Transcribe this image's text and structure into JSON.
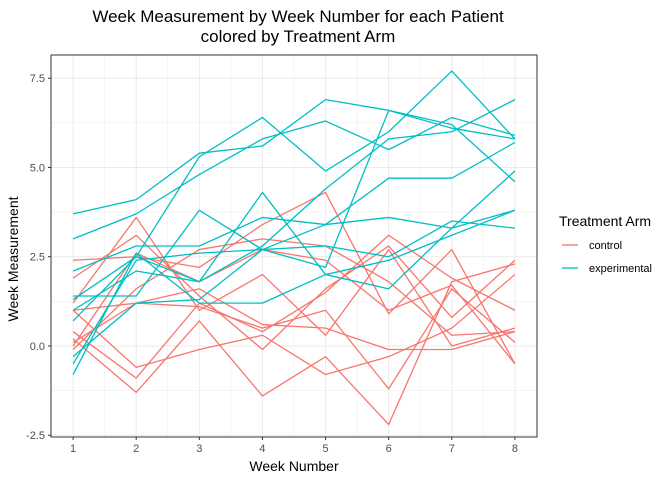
{
  "chart_data": {
    "type": "line",
    "title_line1": "Week Measurement by Week Number for each Patient",
    "title_line2": "colored by Treatment Arm",
    "xlabel": "Week Number",
    "ylabel": "Week Measurement",
    "xlim": [
      0.65,
      8.35
    ],
    "ylim": [
      -2.55,
      8.15
    ],
    "x_ticks": [
      1,
      2,
      3,
      4,
      5,
      6,
      7,
      8
    ],
    "y_ticks": [
      -2.5,
      0.0,
      2.5,
      5.0,
      7.5
    ],
    "y_tick_labels": [
      "-2.5",
      "0.0",
      "2.5",
      "5.0",
      "7.5"
    ],
    "grid": true,
    "legend": {
      "title": "Treatment Arm",
      "position": "right",
      "entries": [
        {
          "label": "control",
          "color": "#f8766d"
        },
        {
          "label": "experimental",
          "color": "#00bfc4"
        }
      ]
    },
    "x": [
      1,
      2,
      3,
      4,
      5,
      6,
      7,
      8
    ],
    "series": [
      {
        "group": "control",
        "values": [
          0.2,
          -1.3,
          0.7,
          -1.4,
          -0.3,
          -2.2,
          1.8,
          2.3
        ]
      },
      {
        "group": "control",
        "values": [
          1.2,
          3.6,
          1.0,
          2.0,
          0.3,
          2.7,
          0.0,
          0.5
        ]
      },
      {
        "group": "control",
        "values": [
          2.4,
          2.5,
          2.2,
          3.4,
          4.3,
          0.9,
          2.7,
          -0.5
        ]
      },
      {
        "group": "control",
        "values": [
          1.0,
          1.2,
          1.6,
          0.6,
          0.5,
          -0.1,
          -0.1,
          0.4
        ]
      },
      {
        "group": "control",
        "values": [
          -0.1,
          1.6,
          2.7,
          3.0,
          2.8,
          1.8,
          0.3,
          0.4
        ]
      },
      {
        "group": "control",
        "values": [
          1.9,
          3.1,
          1.4,
          -0.1,
          1.6,
          2.8,
          0.8,
          2.4
        ]
      },
      {
        "group": "control",
        "values": [
          0.4,
          -0.9,
          1.2,
          0.4,
          1.5,
          3.1,
          1.9,
          1.0
        ]
      },
      {
        "group": "control",
        "values": [
          0.1,
          1.2,
          1.1,
          0.5,
          1.0,
          -1.2,
          1.6,
          0.1
        ]
      },
      {
        "group": "control",
        "values": [
          1.0,
          -0.6,
          -0.1,
          0.3,
          -0.8,
          -0.3,
          0.5,
          2.0
        ]
      },
      {
        "group": "control",
        "values": [
          0.0,
          2.6,
          1.8,
          2.7,
          2.4,
          1.0,
          1.7,
          -0.5
        ]
      },
      {
        "group": "experimental",
        "values": [
          3.7,
          4.1,
          5.4,
          5.6,
          6.9,
          6.6,
          6.1,
          5.8
        ]
      },
      {
        "group": "experimental",
        "values": [
          3.0,
          3.7,
          4.8,
          5.8,
          6.3,
          5.5,
          6.4,
          5.9
        ]
      },
      {
        "group": "experimental",
        "values": [
          1.3,
          2.5,
          5.3,
          6.4,
          4.9,
          6.0,
          7.7,
          5.8
        ]
      },
      {
        "group": "experimental",
        "values": [
          1.0,
          2.1,
          1.8,
          2.8,
          4.4,
          5.8,
          6.0,
          6.9
        ]
      },
      {
        "group": "experimental",
        "values": [
          2.1,
          2.8,
          2.8,
          3.6,
          3.4,
          4.7,
          4.7,
          5.7
        ]
      },
      {
        "group": "experimental",
        "values": [
          1.4,
          1.4,
          3.8,
          2.7,
          2.2,
          6.6,
          6.2,
          4.6
        ]
      },
      {
        "group": "experimental",
        "values": [
          0.7,
          2.5,
          1.8,
          4.3,
          2.0,
          1.6,
          3.3,
          4.9
        ]
      },
      {
        "group": "experimental",
        "values": [
          -0.8,
          2.6,
          1.2,
          1.2,
          2.0,
          2.4,
          3.1,
          3.8
        ]
      },
      {
        "group": "experimental",
        "values": [
          -0.3,
          1.2,
          1.3,
          2.7,
          3.4,
          3.6,
          3.3,
          3.8
        ]
      },
      {
        "group": "experimental",
        "values": [
          -0.5,
          2.4,
          2.6,
          2.7,
          2.8,
          2.5,
          3.5,
          3.3
        ]
      }
    ]
  }
}
